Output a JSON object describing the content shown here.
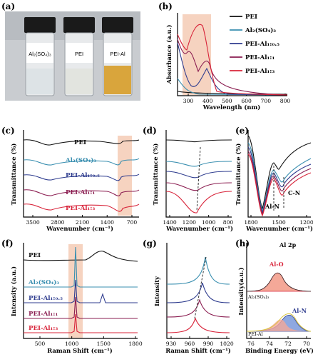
{
  "panels": {
    "a": {
      "label": "(a)",
      "vials": [
        "Al₂(SO₄)₃",
        "PEI",
        "PEI-Al"
      ]
    },
    "b": {
      "label": "(b)",
      "ylabel": "Absorbance (a.u.)",
      "xlabel": "Wavelength (nm)",
      "xticks": [
        "300",
        "400",
        "500",
        "600",
        "700",
        "800"
      ],
      "legend": [
        "PEI",
        "Al₂(SO₄)₃",
        "PEI-Al₁:₀.₅",
        "PEI-Al₁:₁",
        "PEI-Al₁:₃"
      ]
    },
    "c": {
      "label": "(c)",
      "ylabel": "Transmittance (%)",
      "xlabel": "Wavenumber (cm⁻¹)",
      "xticks": [
        "3500",
        "2800",
        "2100",
        "1400",
        "700"
      ],
      "series": [
        "PEI",
        "Al₂(SO₄)₃",
        "PEI-Al₁:₀.₅",
        "PEI-Al₁:₁",
        "PEI-Al₁:₃"
      ]
    },
    "d": {
      "label": "(d)",
      "ylabel": "Transmittance (%)",
      "xlabel": "Wavenumber (cm⁻¹)",
      "xticks": [
        "1400",
        "1200",
        "1000",
        "800"
      ]
    },
    "e": {
      "label": "(e)",
      "ylabel": "Transmittance (%)",
      "xlabel": "Wavenumber (cm⁻¹)",
      "xticks": [
        "1800",
        "1500",
        "1200"
      ],
      "annotations": [
        "C-N",
        "Al-N"
      ]
    },
    "f": {
      "label": "(f)",
      "ylabel": "Intensity (a.u.)",
      "xlabel": "Raman Shift (cm⁻¹)",
      "xticks": [
        "500",
        "1000",
        "1500",
        "1800"
      ],
      "series": [
        "PEI",
        "Al₂(SO₄)₃",
        "PEI-Al₁:₀.₅",
        "PEI-Al₁:₁",
        "PEI-Al₁:₃"
      ]
    },
    "g": {
      "label": "(g)",
      "ylabel": "Intensity",
      "xlabel": "Raman Shift (cm⁻¹)",
      "xticks": [
        "930",
        "960",
        "990",
        "1020"
      ]
    },
    "h": {
      "label": "(h)",
      "title": "Al 2p",
      "ylabel": "Intensity(a.u.)",
      "xlabel": "Binding Energy (eV)",
      "xticks": [
        "76",
        "74",
        "72",
        "70"
      ],
      "annotations": [
        "Al-O",
        "Al₂(SO₄)₃",
        "Al-N",
        "PEI-Al"
      ]
    }
  },
  "colors": {
    "pei": "#111111",
    "al": "#3a8fb0",
    "r05": "#2f3d8f",
    "r1": "#8a1c50",
    "r3": "#d8243a",
    "shade": "#f6d3c0"
  }
}
